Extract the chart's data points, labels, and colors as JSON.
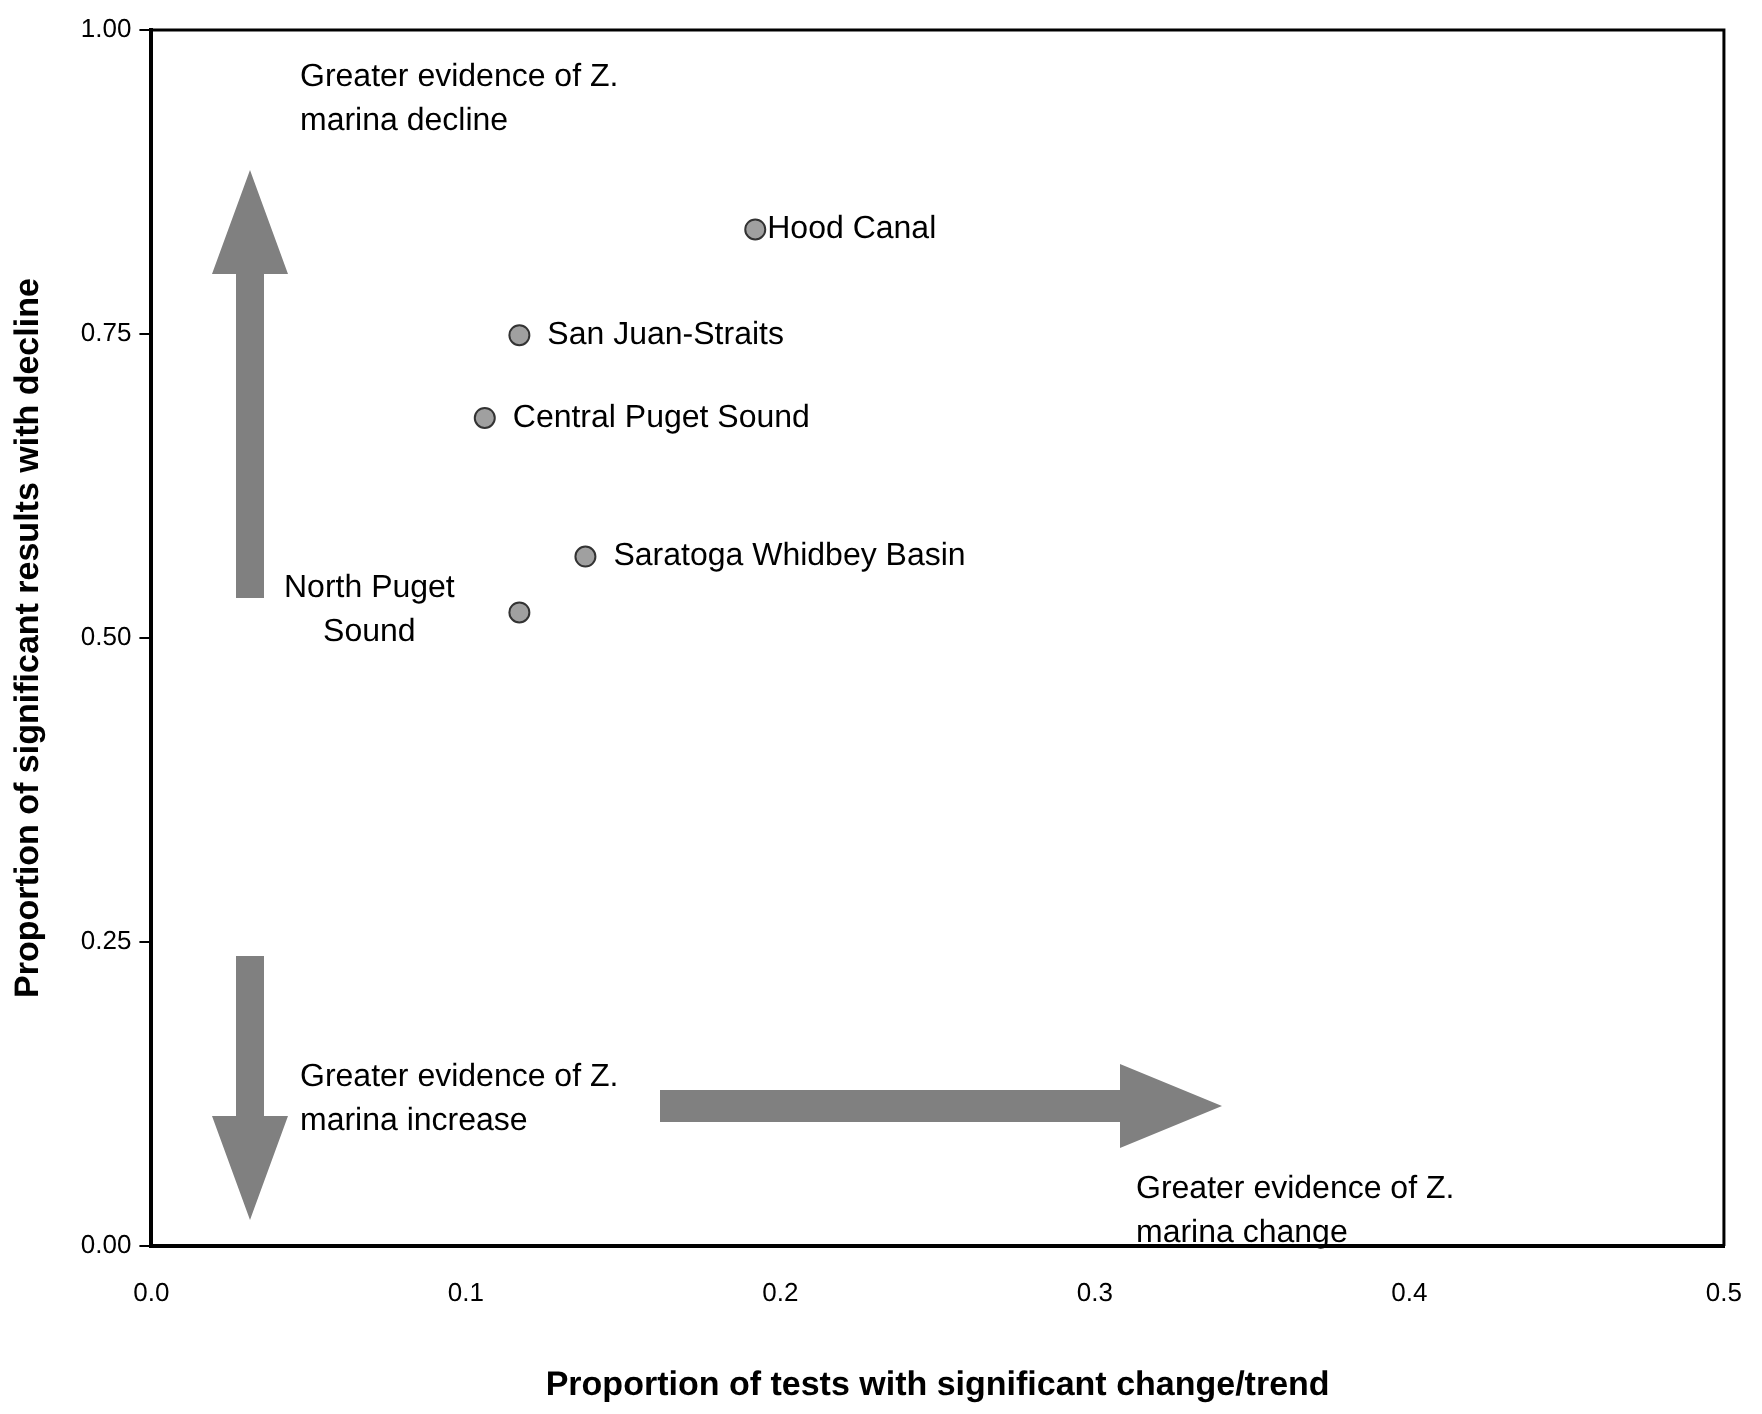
{
  "chart_data": {
    "type": "scatter",
    "xlabel": "Proportion of tests with significant change/trend",
    "ylabel": "Proportion of significant results with decline",
    "x": [
      0.192,
      0.117,
      0.106,
      0.138,
      0.117
    ],
    "values": [
      0.836,
      0.749,
      0.681,
      0.567,
      0.521
    ],
    "color": "#a0a0a0",
    "marker": "circle",
    "grid": false,
    "legend": false,
    "xlim": [
      0,
      0.5
    ],
    "xticks": [
      {
        "value": 0,
        "label": "0.0"
      },
      0.1,
      0.2,
      0.3,
      0.4,
      0.5
    ],
    "ylim": [
      0,
      1
    ],
    "yticks": [
      {
        "value": 0,
        "label": "0.00"
      },
      {
        "value": 0.25,
        "label": "0.25"
      },
      {
        "value": 0.5,
        "label": "0.50"
      },
      {
        "value": 0.75,
        "label": "0.75"
      },
      {
        "value": 1,
        "label": "1.00"
      }
    ],
    "annotations": [
      {
        "text": "Hood Canal",
        "x": 0.192,
        "y": 0.836
      },
      {
        "text": "San Juan-Straits",
        "x": 0.117,
        "y": 0.749
      },
      {
        "text": "Central Puget Sound",
        "x": 0.106,
        "y": 0.681
      },
      {
        "text": "Saratoga Whidbey Basin",
        "x": 0.138,
        "y": 0.567
      },
      {
        "text": "North Puget Sound",
        "x": 0.117,
        "y": 0.521
      },
      "Greater evidence of Z. marina decline",
      "Greater evidence of Z. marina increase",
      "Greater evidence of Z. marina change"
    ]
  }
}
